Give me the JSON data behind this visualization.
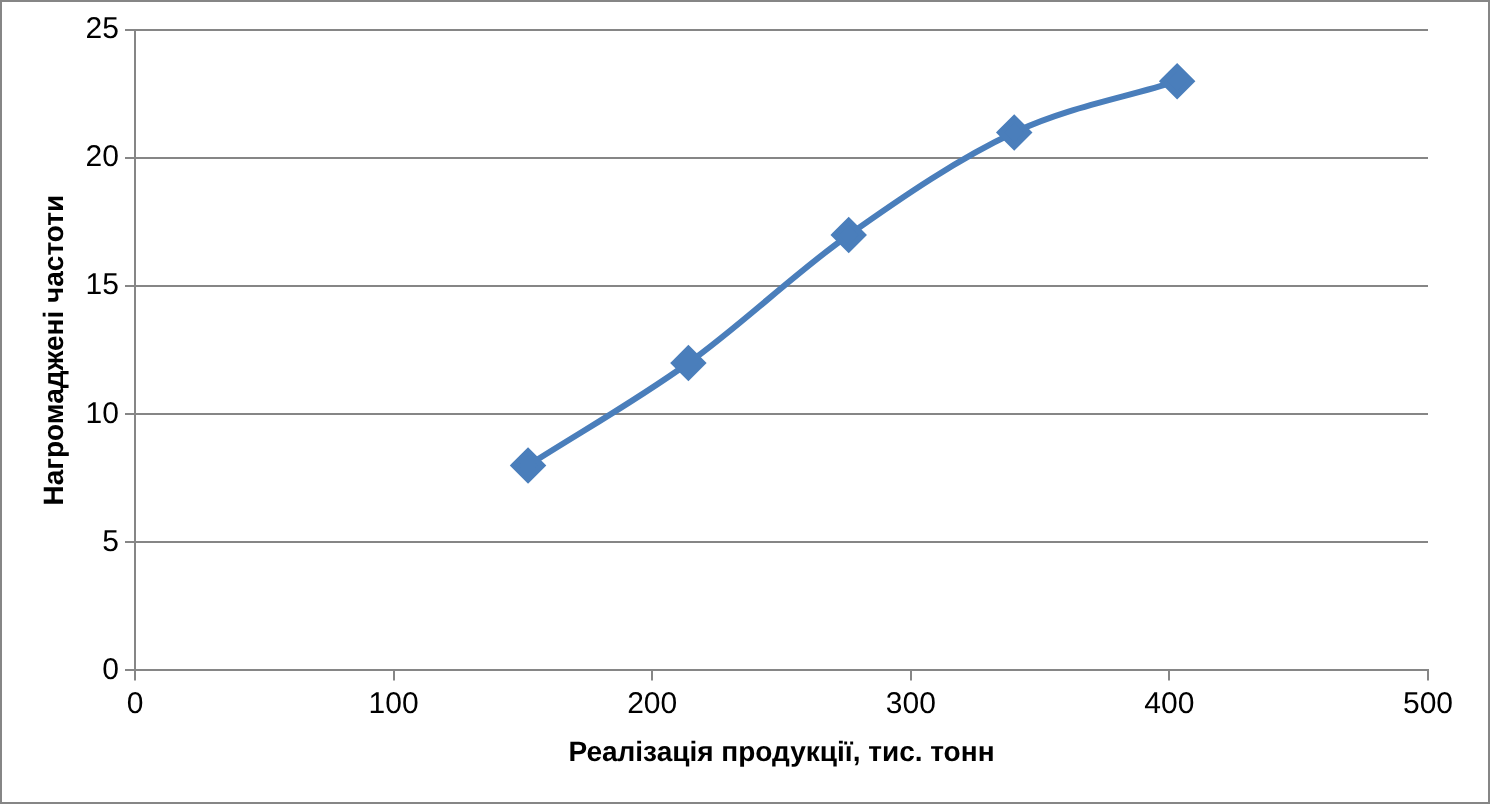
{
  "chart_data": {
    "type": "line",
    "xlabel": "Реалізація продукції, тис. тонн",
    "ylabel": "Нагромаджені частоти",
    "x": [
      152,
      214,
      276,
      340,
      403
    ],
    "series": [
      {
        "color": "#4a7ebb",
        "values": [
          8,
          12,
          17,
          21,
          23
        ]
      }
    ],
    "xlim": [
      0,
      500
    ],
    "xticks": [
      0,
      100,
      200,
      300,
      400,
      500
    ],
    "ylim": [
      0,
      25
    ],
    "yticks": [
      0,
      5,
      10,
      15,
      20,
      25
    ],
    "grid": "y",
    "marker": "diamond"
  }
}
